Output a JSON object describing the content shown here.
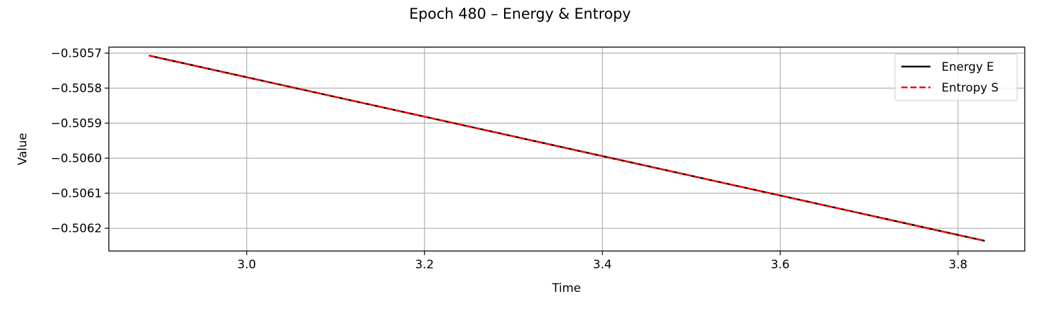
{
  "chart_data": {
    "type": "line",
    "title": "Epoch 480 – Energy & Entropy",
    "xlabel": "Time",
    "ylabel": "Value",
    "xlim": [
      2.845,
      3.875
    ],
    "ylim": [
      -0.506265,
      -0.505683
    ],
    "xticks": [
      3.0,
      3.2,
      3.4,
      3.6,
      3.8
    ],
    "xtick_labels": [
      "3.0",
      "3.2",
      "3.4",
      "3.6",
      "3.8"
    ],
    "yticks": [
      -0.5057,
      -0.5058,
      -0.5059,
      -0.506,
      -0.5061,
      -0.5062
    ],
    "ytick_labels": [
      "−0.5057",
      "−0.5058",
      "−0.5059",
      "−0.5060",
      "−0.5061",
      "−0.5062"
    ],
    "grid": true,
    "legend_position": "top-right",
    "series": [
      {
        "name": "Energy E",
        "color": "#000000",
        "dash": "solid",
        "x": [
          2.89,
          3.83
        ],
        "y": [
          -0.505707,
          -0.506236
        ]
      },
      {
        "name": "Entropy S",
        "color": "#ff0000",
        "dash": "dashed",
        "x": [
          2.89,
          3.83
        ],
        "y": [
          -0.505707,
          -0.506236
        ]
      }
    ]
  }
}
